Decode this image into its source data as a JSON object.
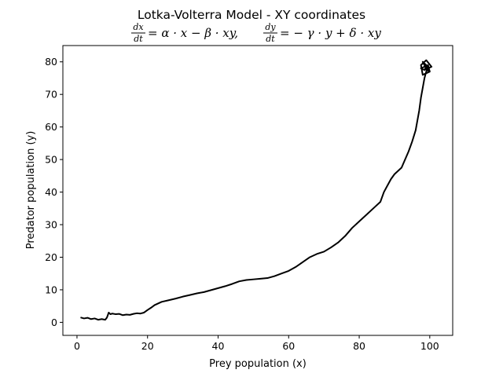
{
  "chart_data": {
    "type": "line",
    "title": "Lotka-Volterra Model - XY coordinates",
    "equation": {
      "left_num": "dx",
      "left_den": "dt",
      "left_rhs": "= α · x − β · xy,",
      "right_num": "dy",
      "right_den": "dt",
      "right_rhs": "= − γ · y + δ · xy"
    },
    "xlabel": "Prey population (x)",
    "ylabel": "Predator population (y)",
    "xlim": [
      -4,
      106.5
    ],
    "ylim": [
      -4,
      85
    ],
    "xticks": [
      0,
      20,
      40,
      60,
      80,
      100
    ],
    "yticks": [
      0,
      10,
      20,
      30,
      40,
      50,
      60,
      70,
      80
    ],
    "grid": false,
    "series": [
      {
        "color": "#000000",
        "x": [
          1,
          2,
          3,
          4,
          5,
          6,
          7,
          8,
          8.5,
          9,
          9.5,
          10,
          11,
          12,
          13,
          14,
          15,
          16,
          17,
          18,
          19,
          20,
          21,
          22,
          24,
          26,
          28,
          30,
          32,
          34,
          36,
          38,
          40,
          42,
          44,
          46,
          48,
          50,
          52,
          54,
          56,
          58,
          60,
          62,
          64,
          66,
          68,
          70,
          72,
          74,
          76,
          78,
          80,
          82,
          84,
          86,
          87,
          88,
          89,
          90,
          91,
          92,
          93,
          94,
          95,
          96,
          96.5,
          97,
          97.5,
          98,
          98.5,
          99,
          99.5,
          100,
          99,
          98,
          99,
          100,
          98,
          97.5,
          99,
          100.5,
          98.5,
          97.5,
          99.5,
          100,
          98.5
        ],
        "y": [
          1.5,
          1.2,
          1.4,
          1,
          1.2,
          0.8,
          1,
          0.8,
          1.5,
          3,
          2.5,
          2.7,
          2.5,
          2.6,
          2.2,
          2.4,
          2.3,
          2.6,
          2.8,
          2.7,
          3,
          3.8,
          4.5,
          5.3,
          6.3,
          6.8,
          7.3,
          7.9,
          8.4,
          8.9,
          9.3,
          9.9,
          10.5,
          11.1,
          11.8,
          12.6,
          13,
          13.2,
          13.4,
          13.6,
          14.2,
          15,
          15.8,
          17,
          18.5,
          20,
          21,
          21.7,
          23,
          24.5,
          26.5,
          29,
          31,
          33,
          35,
          37,
          40,
          42,
          44,
          45.5,
          46.5,
          47.5,
          50,
          52.5,
          55.5,
          59,
          62,
          65,
          69,
          72,
          75,
          77,
          78,
          77,
          79,
          80,
          78,
          77,
          76,
          79,
          80.5,
          78.5,
          77.5,
          78,
          79,
          77,
          78
        ]
      }
    ]
  }
}
